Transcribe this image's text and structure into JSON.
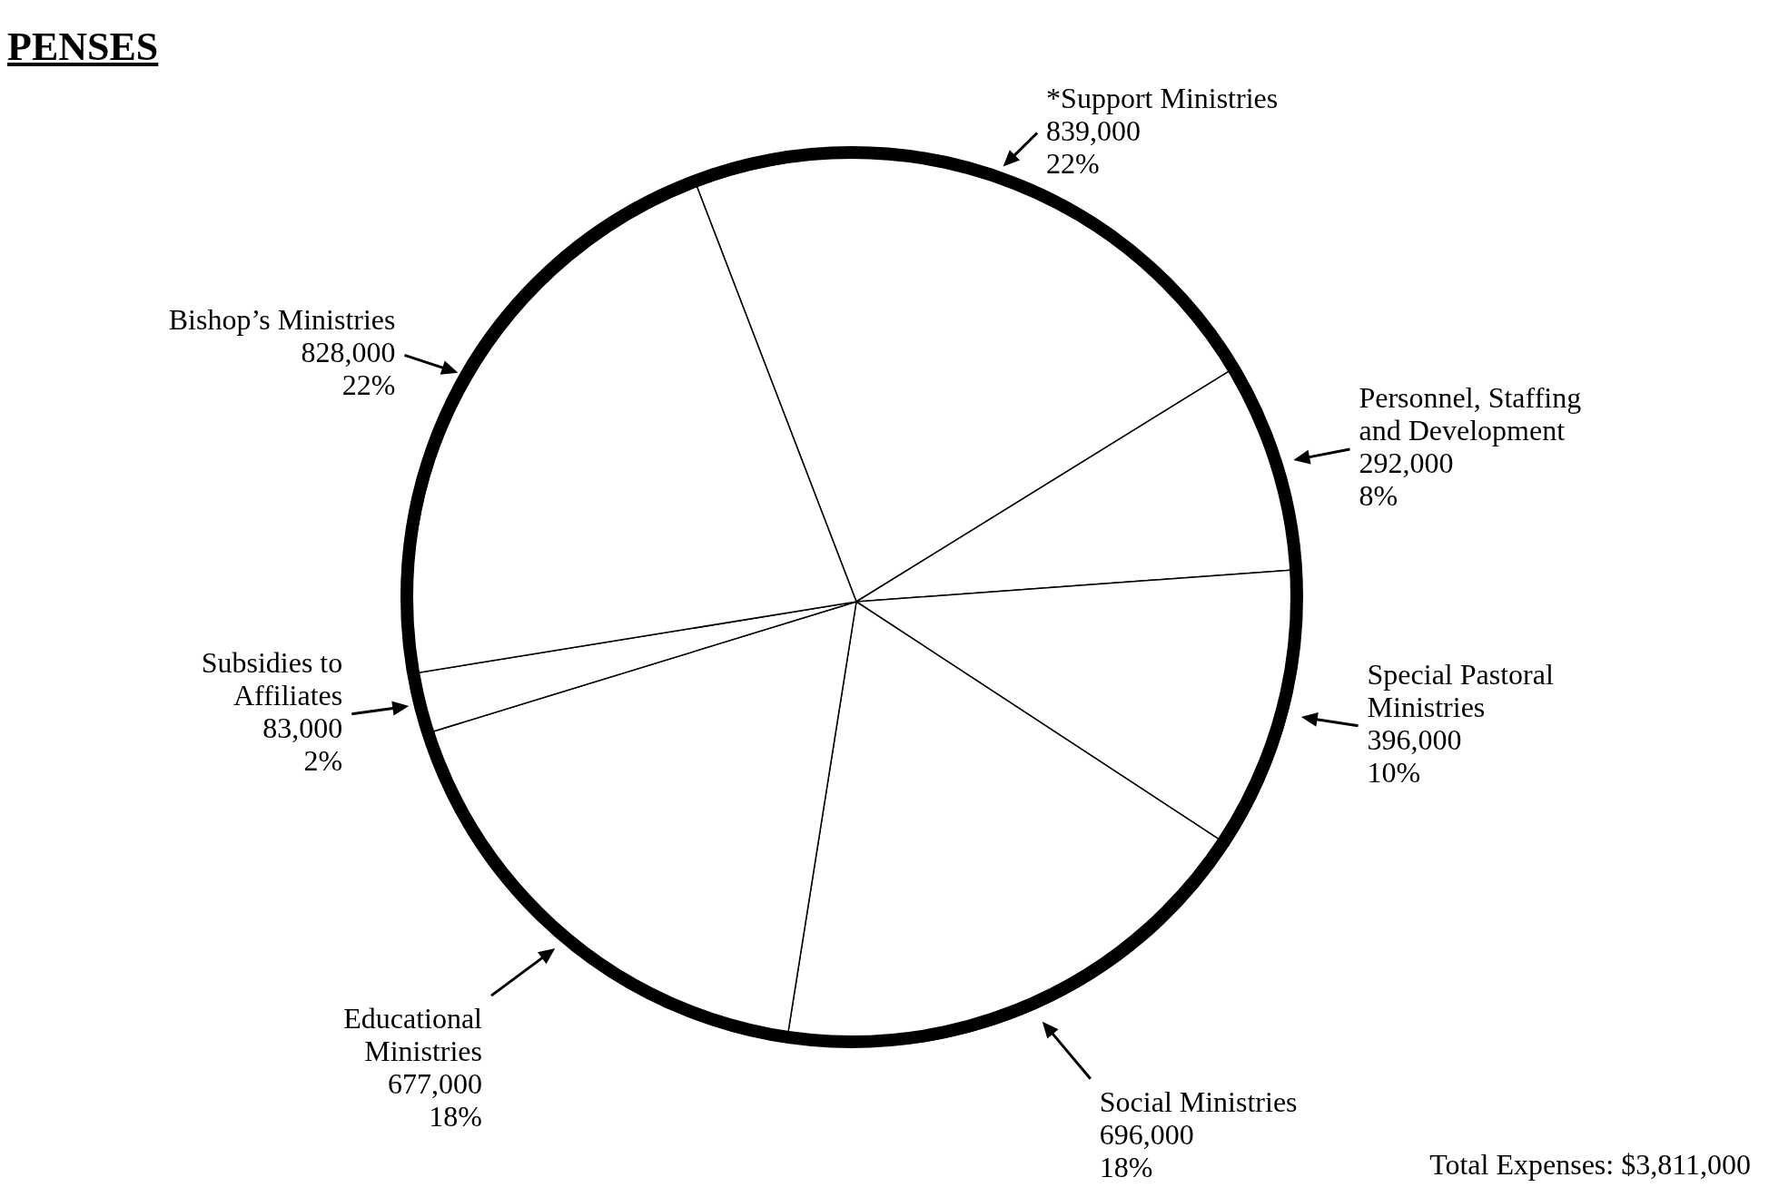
{
  "chart_data": {
    "type": "pie",
    "title": "PENSES",
    "categories": [
      "*Support Ministries",
      "Personnel, Staffing and Development",
      "Special Pastoral Ministries",
      "Social Ministries",
      "Educational Ministries",
      "Subsidies to Affiliates",
      "Bishop’s Ministries"
    ],
    "values": [
      839000,
      292000,
      396000,
      696000,
      677000,
      83000,
      828000
    ],
    "value_labels": [
      "839,000\n22%",
      "292,000\n8%",
      "396,000\n10%",
      "696,000\n18%",
      "677,000\n18%",
      "83,000\n2%",
      "828,000\n22%"
    ],
    "colors": [
      "#ffffff",
      "#ffffff",
      "#ffffff",
      "#ffffff",
      "#ffffff",
      "#ffffff",
      "#ffffff"
    ],
    "annotations": [
      "Total Expenses: $3,811,000"
    ],
    "legend": false
  }
}
